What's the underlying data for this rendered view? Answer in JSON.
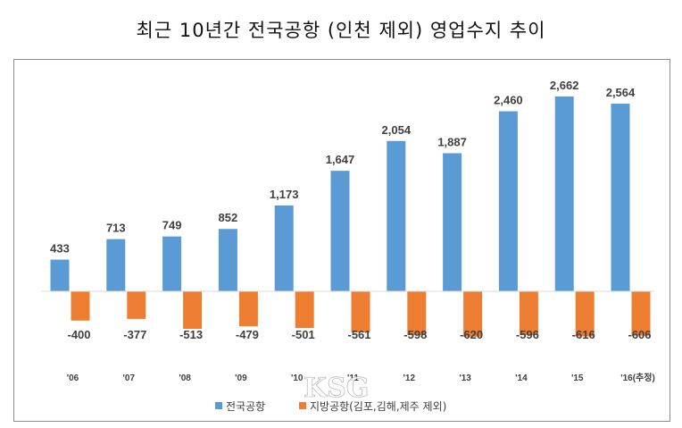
{
  "chart_data": {
    "type": "bar",
    "title": "최근 10년간 전국공항 (인천 제외) 영업수지 추이",
    "categories": [
      "'06",
      "'07",
      "'08",
      "'09",
      "'10",
      "'11",
      "'12",
      "'13",
      "'14",
      "'15",
      "'16(추정)"
    ],
    "series": [
      {
        "name": "전국공항",
        "color": "#5b9bd5",
        "values": [
          433,
          713,
          749,
          852,
          1173,
          1647,
          2054,
          1887,
          2460,
          2662,
          2564
        ],
        "labels": [
          "433",
          "713",
          "749",
          "852",
          "1,173",
          "1,647",
          "2,054",
          "1,887",
          "2,460",
          "2,662",
          "2,564"
        ]
      },
      {
        "name": "지방공항(김포,김해,제주 제외)",
        "color": "#ed7d31",
        "values": [
          -400,
          -377,
          -513,
          -479,
          -501,
          -561,
          -598,
          -620,
          -596,
          -616,
          -606
        ],
        "labels": [
          "-400",
          "-377",
          "-513",
          "-479",
          "-501",
          "-561",
          "-598",
          "-620",
          "-596",
          "-616",
          "-606"
        ]
      }
    ],
    "legend_position": "bottom",
    "grid": false
  },
  "watermark": "KSG"
}
